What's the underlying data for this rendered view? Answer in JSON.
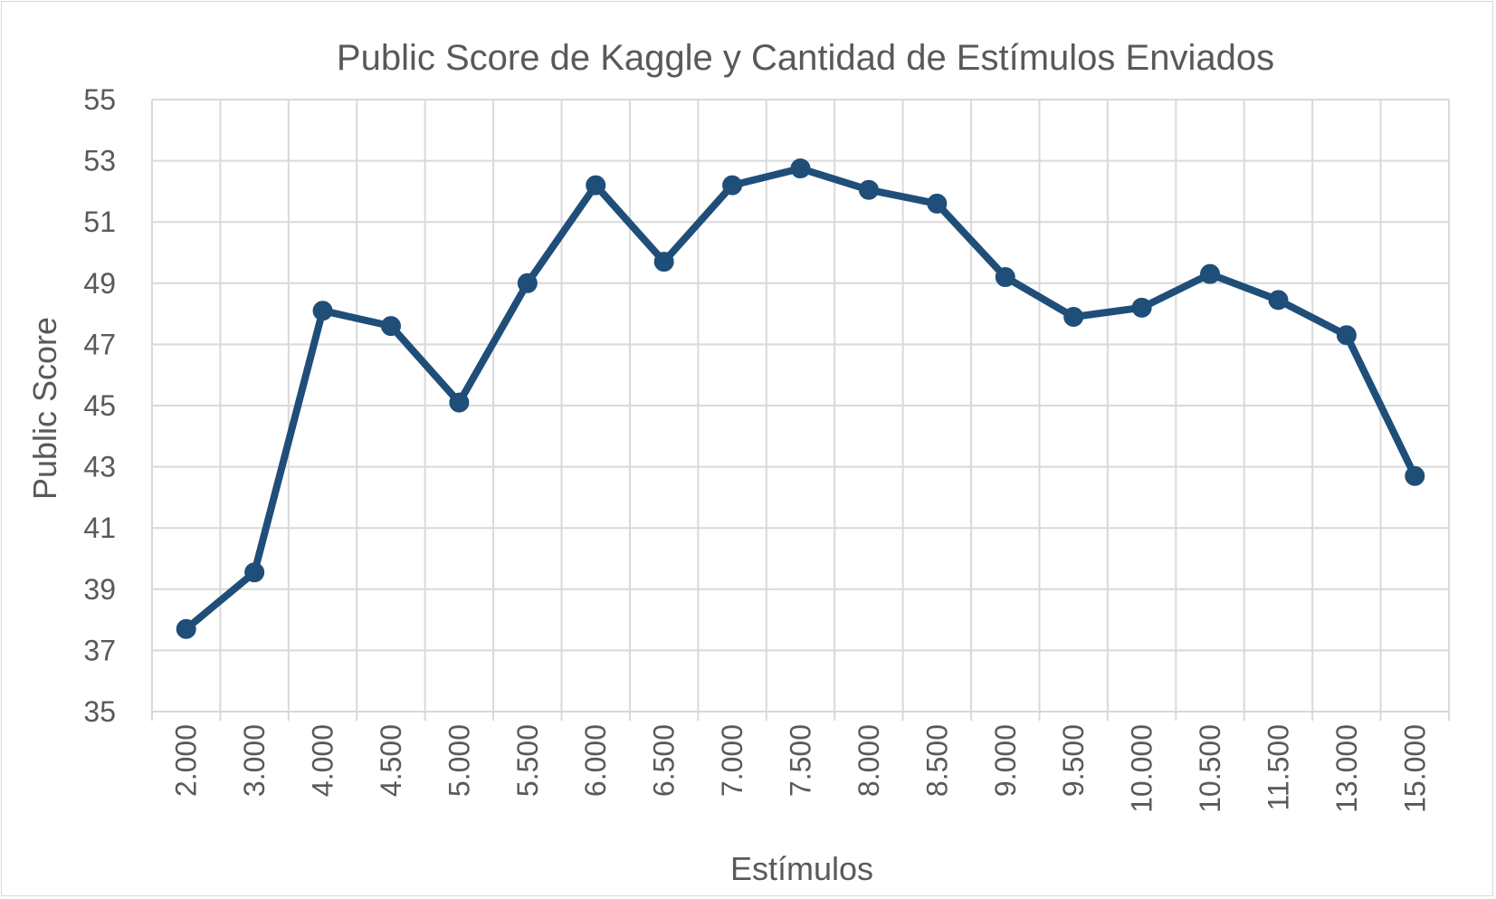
{
  "chart_data": {
    "type": "line",
    "title": "Public Score de Kaggle y Cantidad de Estímulos Enviados",
    "xlabel": "Estímulos",
    "ylabel": "Public Score",
    "categories": [
      "2.000",
      "3.000",
      "4.000",
      "4.500",
      "5.000",
      "5.500",
      "6.000",
      "6.500",
      "7.000",
      "7.500",
      "8.000",
      "8.500",
      "9.000",
      "9.500",
      "10.000",
      "10.500",
      "11.500",
      "13.000",
      "15.000"
    ],
    "series": [
      {
        "name": "Public Score",
        "color": "#1f4e79",
        "values": [
          37.7,
          39.55,
          48.1,
          47.6,
          45.1,
          49.0,
          52.2,
          49.7,
          52.2,
          52.75,
          52.05,
          51.6,
          49.2,
          47.9,
          48.2,
          49.3,
          48.45,
          47.3,
          42.7
        ]
      }
    ],
    "ylim": [
      35,
      55
    ],
    "yticks": [
      "35",
      "37",
      "39",
      "41",
      "43",
      "45",
      "47",
      "49",
      "51",
      "53",
      "55"
    ],
    "grid": true,
    "legend": "none"
  }
}
